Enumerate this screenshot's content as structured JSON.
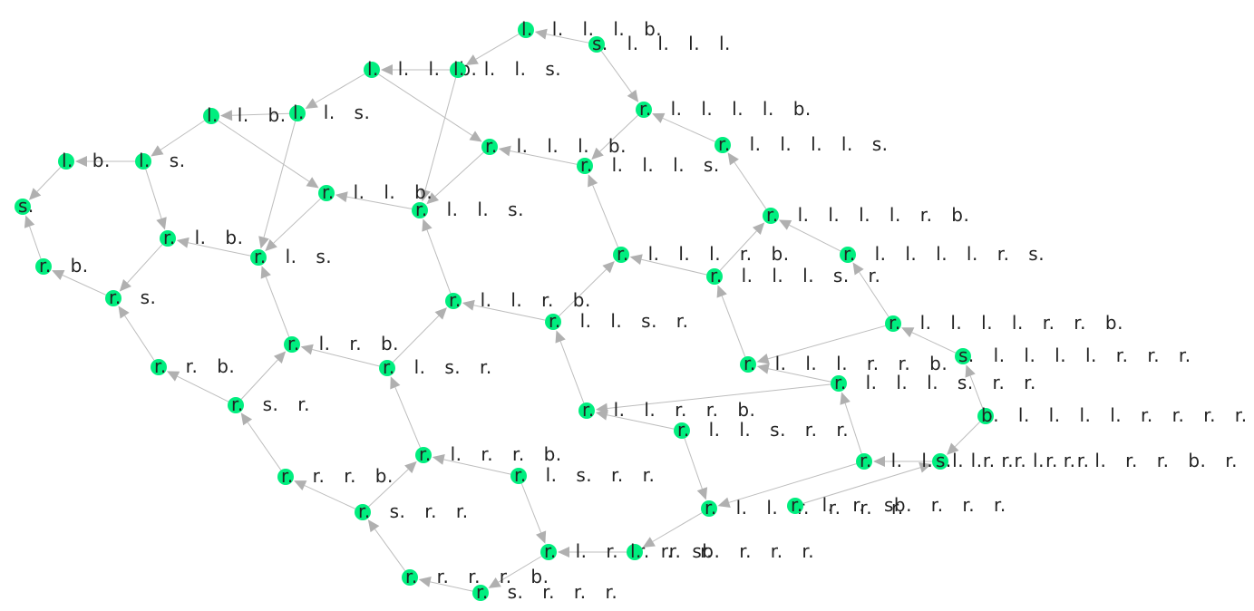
{
  "colors": {
    "node": "#00ee7f",
    "edge": "#bdbdbd",
    "arrow": "#b0b0b0",
    "label": "#222222"
  },
  "nodes": [
    {
      "id": 0,
      "label": "s."
    },
    {
      "id": 1,
      "label": "l. b."
    },
    {
      "id": 2,
      "label": "r. b."
    },
    {
      "id": 3,
      "label": "l. s."
    },
    {
      "id": 4,
      "label": "l. l. b."
    },
    {
      "id": 5,
      "label": "r. s."
    },
    {
      "id": 6,
      "label": "r. l. b."
    },
    {
      "id": 7,
      "label": "l. l. s."
    },
    {
      "id": 8,
      "label": "r. r. b."
    },
    {
      "id": 9,
      "label": "r. l. s."
    },
    {
      "id": 10,
      "label": "l. l. l. b."
    },
    {
      "id": 11,
      "label": "r. l. l. b."
    },
    {
      "id": 12,
      "label": "r. s. r."
    },
    {
      "id": 13,
      "label": "r. l. r. b."
    },
    {
      "id": 14,
      "label": "l. l. l. s."
    },
    {
      "id": 15,
      "label": "r. l. l. s."
    },
    {
      "id": 16,
      "label": "r. r. r. b."
    },
    {
      "id": 17,
      "label": "r. l. s. r."
    },
    {
      "id": 18,
      "label": "l. l. l. l. b."
    },
    {
      "id": 19,
      "label": "r. l. l. l. b."
    },
    {
      "id": 20,
      "label": "r. l. l. r. b."
    },
    {
      "id": 21,
      "label": "r. s. r. r."
    },
    {
      "id": 22,
      "label": "r. l. r. r. b."
    },
    {
      "id": 23,
      "label": "s. l. l. l. l."
    },
    {
      "id": 24,
      "label": "r. l. l. l. s."
    },
    {
      "id": 25,
      "label": "r. l. l. s. r."
    },
    {
      "id": 26,
      "label": "r. r. r. r. b."
    },
    {
      "id": 27,
      "label": "r. l. s. r. r."
    },
    {
      "id": 28,
      "label": "r. l. l. l. l. b."
    },
    {
      "id": 29,
      "label": "r. l. l. l. r. b."
    },
    {
      "id": 30,
      "label": "r. l. l. r. r. b."
    },
    {
      "id": 31,
      "label": "r. s. r. r. r."
    },
    {
      "id": 32,
      "label": "r. l. l. l. l. s."
    },
    {
      "id": 33,
      "label": "r. l. l. l. s. r."
    },
    {
      "id": 34,
      "label": "r. l. l. s. r. r."
    },
    {
      "id": 35,
      "label": "r. l. r. r. r. r."
    },
    {
      "id": 36,
      "label": "r. l. l. l. l. r. b."
    },
    {
      "id": 37,
      "label": "r. l. l. l. r. r. b."
    },
    {
      "id": 38,
      "label": "r. l. l. l. l. r. s."
    },
    {
      "id": 39,
      "label": "r. l. l. l. s. r. r."
    },
    {
      "id": 40,
      "label": "r. l. l. r. r. r. r."
    },
    {
      "id": 41,
      "label": "r. l. l. l. l. r. r. b."
    },
    {
      "id": 42,
      "label": "s. l. l. l. l. r. r. r."
    },
    {
      "id": 43,
      "label": "b. l. l. l. l. r. r. r. r."
    },
    {
      "id": 44,
      "label": "r. l. l. l. r. r. r. r."
    },
    {
      "id": 45,
      "label": "s. l. r. l. r. l. r. r. b. r. r. r."
    },
    {
      "id": 46,
      "label": "r. l. r. sb. r. r. r."
    },
    {
      "id": 47,
      "label": "l. r. sb. r. r. r."
    }
  ],
  "edges": [
    [
      1,
      0
    ],
    [
      3,
      1
    ],
    [
      4,
      3
    ],
    [
      7,
      4
    ],
    [
      10,
      7
    ],
    [
      14,
      10
    ],
    [
      18,
      14
    ],
    [
      23,
      18
    ],
    [
      2,
      0
    ],
    [
      5,
      2
    ],
    [
      8,
      5
    ],
    [
      12,
      8
    ],
    [
      16,
      12
    ],
    [
      21,
      16
    ],
    [
      26,
      21
    ],
    [
      31,
      26
    ],
    [
      3,
      6
    ],
    [
      6,
      5
    ],
    [
      9,
      6
    ],
    [
      12,
      13
    ],
    [
      13,
      9
    ],
    [
      17,
      13
    ],
    [
      21,
      22
    ],
    [
      22,
      17
    ],
    [
      27,
      22
    ],
    [
      7,
      9
    ],
    [
      4,
      11
    ],
    [
      11,
      9
    ],
    [
      15,
      11
    ],
    [
      17,
      20
    ],
    [
      20,
      15
    ],
    [
      25,
      20
    ],
    [
      27,
      35
    ],
    [
      35,
      31
    ],
    [
      47,
      35
    ],
    [
      40,
      47
    ],
    [
      14,
      15
    ],
    [
      10,
      19
    ],
    [
      19,
      15
    ],
    [
      24,
      19
    ],
    [
      25,
      29
    ],
    [
      29,
      24
    ],
    [
      33,
      29
    ],
    [
      34,
      30
    ],
    [
      30,
      25
    ],
    [
      39,
      30
    ],
    [
      23,
      28
    ],
    [
      28,
      24
    ],
    [
      32,
      28
    ],
    [
      33,
      36
    ],
    [
      36,
      32
    ],
    [
      38,
      36
    ],
    [
      34,
      40
    ],
    [
      44,
      40
    ],
    [
      39,
      37
    ],
    [
      37,
      33
    ],
    [
      41,
      38
    ],
    [
      42,
      41
    ],
    [
      43,
      42
    ],
    [
      45,
      44
    ],
    [
      43,
      45
    ],
    [
      44,
      39
    ],
    [
      46,
      45
    ],
    [
      41,
      37
    ]
  ]
}
